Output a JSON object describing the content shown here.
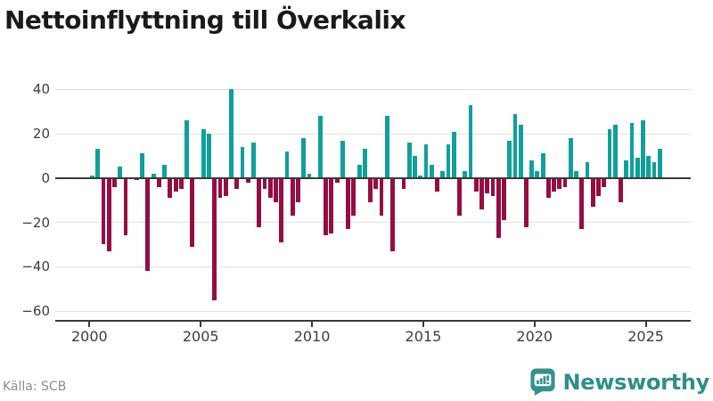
{
  "title": "Nettoinflyttning till Överkalix",
  "source": "Källa: SCB",
  "logo": {
    "text": "Newsworthy"
  },
  "chart_data": {
    "type": "bar",
    "title": "Nettoinflyttning till Överkalix",
    "xlabel": "",
    "ylabel": "",
    "frequency": "quarterly",
    "start": "2000-Q1",
    "end": "2025-Q3",
    "values": [
      1,
      13,
      -30,
      -33,
      -4,
      5,
      -26,
      0,
      -1,
      11,
      -42,
      2,
      -4,
      6,
      -9,
      -6,
      -5,
      26,
      -31,
      0,
      22,
      20,
      -55,
      -9,
      -8,
      40,
      -5,
      14,
      -2,
      16,
      -22,
      -5,
      -9,
      -11,
      -29,
      12,
      -17,
      -11,
      18,
      2,
      0,
      28,
      -26,
      -25,
      -2,
      17,
      -23,
      -17,
      6,
      13,
      -11,
      -5,
      -17,
      28,
      -33,
      0,
      -5,
      16,
      10,
      1,
      15,
      6,
      -6,
      3,
      15,
      21,
      -17,
      3,
      33,
      -6,
      -14,
      -7,
      -8,
      -27,
      -19,
      17,
      29,
      24,
      -22,
      8,
      3,
      11,
      -9,
      -6,
      -5,
      -4,
      18,
      3,
      -23,
      7,
      -13,
      -8,
      -4,
      22,
      24,
      -11,
      8,
      25,
      9,
      26,
      10,
      7,
      13
    ],
    "x_ticks": [
      {
        "label": "2000",
        "year": 2000
      },
      {
        "label": "2005",
        "year": 2005
      },
      {
        "label": "2010",
        "year": 2010
      },
      {
        "label": "2015",
        "year": 2015
      },
      {
        "label": "2020",
        "year": 2020
      },
      {
        "label": "2025",
        "year": 2025
      }
    ],
    "y_ticks": [
      {
        "label": "40",
        "value": 40
      },
      {
        "label": "20",
        "value": 20
      },
      {
        "label": "0",
        "value": 0
      },
      {
        "label": "−20",
        "value": -20
      },
      {
        "label": "−40",
        "value": -40
      },
      {
        "label": "−60",
        "value": -60
      }
    ],
    "ylim": [
      -60,
      42
    ],
    "grid": "horizontal",
    "legend": "none",
    "colors": {
      "positive": "#10a09b",
      "negative": "#960d45"
    }
  }
}
